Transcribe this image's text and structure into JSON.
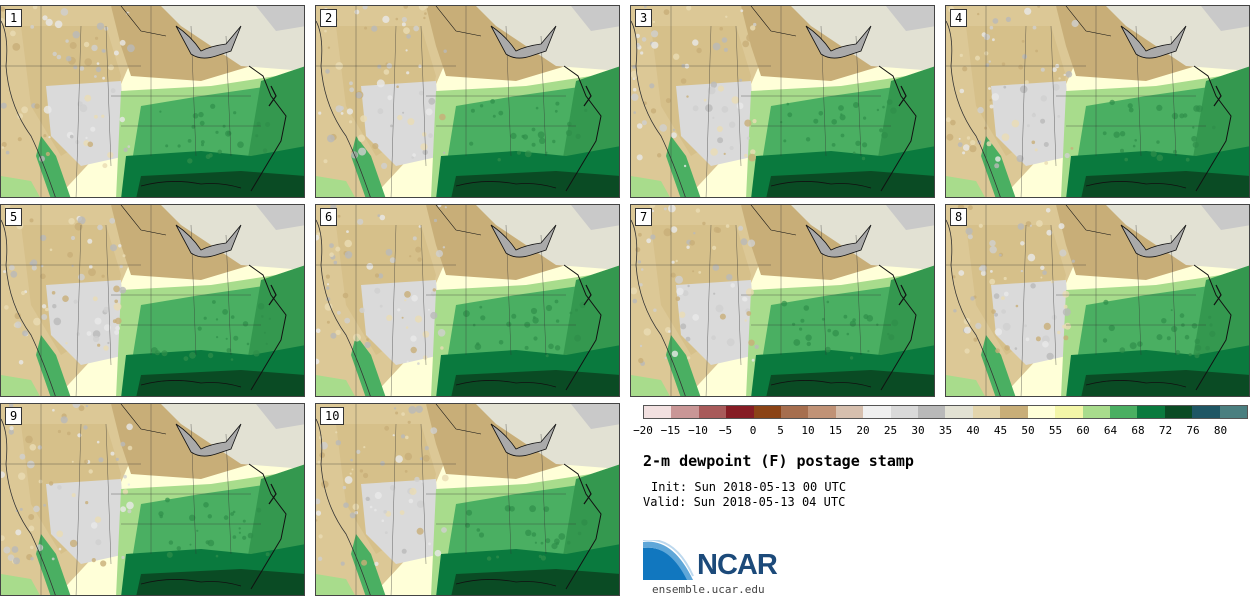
{
  "title": "2-m dewpoint (F) postage stamp",
  "init_line": "Init: Sun 2018-05-13 00 UTC",
  "valid_line": "Valid: Sun 2018-05-13 04 UTC",
  "logo_text": "NCAR",
  "website": "ensemble.ucar.edu",
  "members": [
    "1",
    "2",
    "3",
    "4",
    "5",
    "6",
    "7",
    "8",
    "9",
    "10"
  ],
  "colorbar": {
    "tick_labels": [
      "−20",
      "−15",
      "−10",
      "−5",
      "0",
      "5",
      "10",
      "15",
      "20",
      "25",
      "30",
      "35",
      "40",
      "45",
      "50",
      "55",
      "60",
      "64",
      "68",
      "72",
      "76",
      "80"
    ],
    "colors": [
      "#f2e0e0",
      "#c99696",
      "#a85a5a",
      "#861c24",
      "#8b4316",
      "#a66e4e",
      "#c09276",
      "#d6bfae",
      "#efefef",
      "#d9d9d9",
      "#b9b9b9",
      "#e2e1d3",
      "#e3d5ac",
      "#c8ae78",
      "#ffffd8",
      "#f3f6a8",
      "#a8dc8c",
      "#4aaf62",
      "#0a7a3e",
      "#0a4b24",
      "#1e5664",
      "#4a7f80"
    ]
  }
}
